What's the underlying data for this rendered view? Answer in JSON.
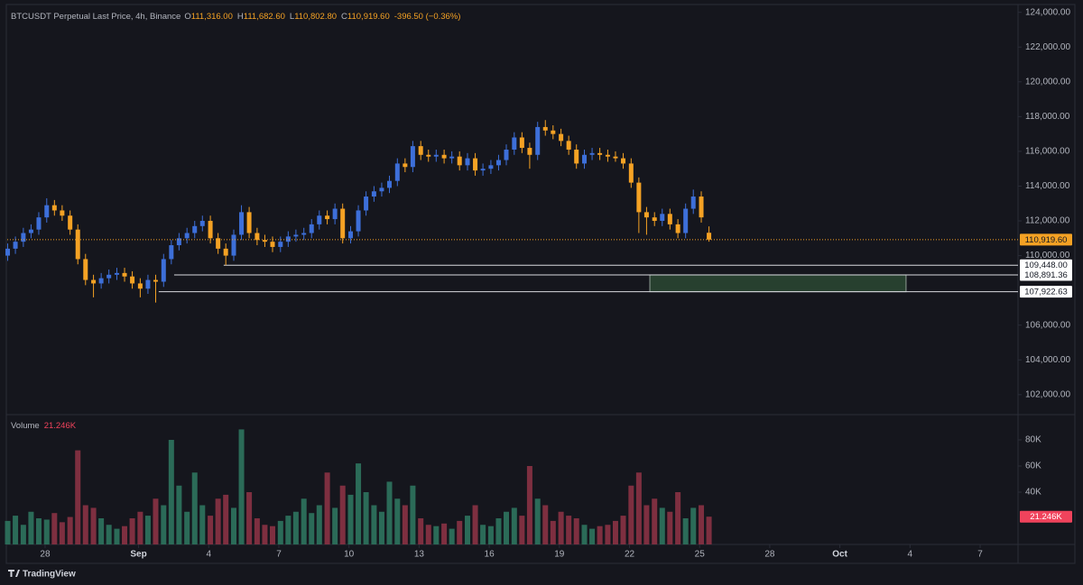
{
  "header": {
    "logo": "TradingView"
  },
  "chart_data": [
    {
      "type": "candlestick",
      "title": "BTCUSDT Perpetual Last Price, 4h, Binance",
      "ohlc_legend": [
        {
          "key": "O",
          "value": "111,316.00"
        },
        {
          "key": "H",
          "value": "111,682.60"
        },
        {
          "key": "L",
          "value": "110,802.80"
        },
        {
          "key": "C",
          "value": "110,919.60"
        }
      ],
      "change": "-396.50 (−0.36%)",
      "x": [
        -1.6,
        -1.27,
        -0.93,
        -0.6,
        -0.27,
        0.07,
        0.4,
        0.73,
        1.07,
        1.4,
        1.73,
        2.07,
        2.4,
        2.73,
        3.07,
        3.4,
        3.73,
        4.07,
        4.4,
        4.73,
        5.07,
        5.4,
        5.73,
        6.07,
        6.4,
        6.73,
        7.07,
        7.4,
        7.73,
        8.07,
        8.4,
        8.73,
        9.07,
        9.4,
        9.73,
        10.07,
        10.4,
        10.73,
        11.07,
        11.4,
        11.73,
        12.07,
        12.4,
        12.73,
        13.07,
        13.4,
        13.73,
        14.07,
        14.4,
        14.73,
        15.07,
        15.4,
        15.73,
        16.07,
        16.4,
        16.73,
        17.07,
        17.4,
        17.73,
        18.07,
        18.4,
        18.73,
        19.07,
        19.4,
        19.73,
        20.07,
        20.4,
        20.73,
        21.07,
        21.4,
        21.73,
        22.07,
        22.4,
        22.73,
        23.07,
        23.4,
        23.73,
        24.07,
        24.4,
        24.73,
        25.07,
        25.4,
        25.73,
        26.07,
        26.4,
        26.73,
        27.07,
        27.4,
        27.73,
        28.07,
        28.4
      ],
      "open": [
        110000,
        110400,
        110800,
        111300,
        111500,
        112200,
        112900,
        112600,
        112300,
        111500,
        109800,
        108600,
        108400,
        108700,
        108900,
        109000,
        108800,
        108400,
        108100,
        108600,
        108500,
        109800,
        110600,
        111000,
        111300,
        111700,
        112000,
        111000,
        110400,
        110000,
        111200,
        112500,
        111300,
        110900,
        110800,
        110500,
        110800,
        111100,
        111200,
        111300,
        111800,
        112300,
        112100,
        112700,
        111000,
        111400,
        112600,
        113400,
        113700,
        113900,
        114300,
        115300,
        115100,
        116300,
        115800,
        115700,
        115800,
        115600,
        115700,
        115200,
        115600,
        114900,
        115000,
        115200,
        115500,
        116100,
        116800,
        116200,
        115800,
        117400,
        117200,
        117000,
        116600,
        116100,
        115300,
        115800,
        115900,
        115800,
        115700,
        115600,
        115300,
        114200,
        112500,
        112200,
        112000,
        112400,
        111800,
        111300,
        112700,
        113400,
        111316
      ],
      "high": [
        110700,
        111100,
        111600,
        111800,
        112500,
        113300,
        113200,
        112900,
        112600,
        111800,
        110100,
        108900,
        109000,
        109200,
        109300,
        109300,
        109100,
        108700,
        108900,
        108900,
        110100,
        110900,
        111300,
        111600,
        112000,
        112300,
        112300,
        111300,
        110700,
        111500,
        112900,
        112800,
        111600,
        111200,
        111100,
        111100,
        111400,
        111500,
        111600,
        112100,
        112600,
        112600,
        113000,
        113000,
        111700,
        112900,
        113700,
        114000,
        114200,
        114600,
        115600,
        115600,
        116600,
        116600,
        116100,
        116100,
        116100,
        116000,
        116000,
        115900,
        115900,
        115300,
        115500,
        115800,
        116400,
        117100,
        117100,
        116500,
        117700,
        117800,
        117500,
        117300,
        116900,
        116400,
        116100,
        116200,
        116200,
        116100,
        116000,
        115900,
        115600,
        114500,
        112800,
        112500,
        112700,
        112700,
        112100,
        113000,
        113800,
        113700,
        111682.6
      ],
      "low": [
        109700,
        110100,
        110500,
        111000,
        111200,
        111900,
        112300,
        112000,
        111200,
        109500,
        108300,
        107600,
        108100,
        108400,
        108600,
        108500,
        108100,
        107600,
        107800,
        107300,
        108200,
        109500,
        110300,
        110700,
        111000,
        111400,
        110700,
        110100,
        109448,
        109700,
        110900,
        111000,
        110600,
        110500,
        110200,
        110200,
        110500,
        110800,
        110900,
        111000,
        111500,
        111800,
        111800,
        110700,
        110700,
        111100,
        112300,
        113100,
        113400,
        113600,
        114000,
        114800,
        114800,
        115500,
        115400,
        115400,
        115300,
        115300,
        114900,
        114900,
        114600,
        114600,
        114700,
        114900,
        115200,
        115800,
        115900,
        115000,
        115500,
        116900,
        116700,
        116300,
        115800,
        115000,
        115000,
        115500,
        115500,
        115400,
        115400,
        115000,
        113900,
        111300,
        111200,
        111700,
        111700,
        111500,
        111000,
        111000,
        112400,
        111900,
        110802.8
      ],
      "close": [
        110400,
        110800,
        111300,
        111500,
        112200,
        112900,
        112600,
        112300,
        111500,
        109800,
        108600,
        108400,
        108700,
        108900,
        109000,
        108800,
        108400,
        108100,
        108600,
        108500,
        109800,
        110600,
        111000,
        111300,
        111700,
        112000,
        111000,
        110400,
        110000,
        111200,
        112500,
        111300,
        110900,
        110800,
        110500,
        110800,
        111100,
        111200,
        111300,
        111800,
        112300,
        112100,
        112700,
        111000,
        111400,
        112600,
        113400,
        113700,
        113900,
        114300,
        115300,
        115100,
        116300,
        115800,
        115700,
        115800,
        115600,
        115700,
        115200,
        115600,
        114900,
        115000,
        115200,
        115500,
        116100,
        116800,
        116200,
        115800,
        117400,
        117200,
        117000,
        116600,
        116100,
        115300,
        115800,
        115900,
        115800,
        115700,
        115600,
        115300,
        114200,
        112500,
        112200,
        112000,
        112400,
        111800,
        111300,
        112700,
        113400,
        112200,
        110919.6
      ],
      "up_color": "#3d6fd9",
      "down_color": "#f5a224",
      "last_price_label": "110,919.60",
      "xlim": [
        -1.62,
        41.62
      ],
      "xticks": [
        {
          "value": 0,
          "label": "28"
        },
        {
          "value": 4,
          "label": "Sep"
        },
        {
          "value": 7,
          "label": "4"
        },
        {
          "value": 10,
          "label": "7"
        },
        {
          "value": 13,
          "label": "10"
        },
        {
          "value": 16,
          "label": "13"
        },
        {
          "value": 19,
          "label": "16"
        },
        {
          "value": 22,
          "label": "19"
        },
        {
          "value": 25,
          "label": "22"
        },
        {
          "value": 28,
          "label": "25"
        },
        {
          "value": 31,
          "label": "28"
        },
        {
          "value": 34,
          "label": "Oct"
        },
        {
          "value": 37,
          "label": "4"
        },
        {
          "value": 40,
          "label": "7"
        }
      ],
      "ylim": [
        100850,
        124450
      ],
      "yticks": [
        {
          "value": 102000,
          "label": "102,000.00"
        },
        {
          "value": 104000,
          "label": "104,000.00"
        },
        {
          "value": 106000,
          "label": "106,000.00"
        },
        {
          "value": 110000,
          "label": "110,000.00"
        },
        {
          "value": 112000,
          "label": "112,000.00"
        },
        {
          "value": 114000,
          "label": "114,000.00"
        },
        {
          "value": 116000,
          "label": "116,000.00"
        },
        {
          "value": 118000,
          "label": "118,000.00"
        },
        {
          "value": 120000,
          "label": "120,000.00"
        },
        {
          "value": 122000,
          "label": "122,000.00"
        },
        {
          "value": 124000,
          "label": "124,000.00"
        }
      ],
      "levels": [
        {
          "value": 109448,
          "label": "109,448.00",
          "x_start": 7.64
        },
        {
          "value": 108891.36,
          "label": "108,891.36",
          "x_start": 5.52
        },
        {
          "value": 107922.63,
          "label": "107,922.63",
          "x_start": 4.86
        }
      ],
      "zone": {
        "x": [
          25.87,
          36.83
        ],
        "y": [
          107922.63,
          108891.36
        ]
      }
    },
    {
      "type": "bar",
      "title": "Volume",
      "last_value_label": "21.246K",
      "values": [
        18000,
        22000,
        15000,
        25000,
        20000,
        19000,
        24000,
        17000,
        21000,
        72000,
        30000,
        28000,
        20000,
        15000,
        12000,
        14000,
        20000,
        25000,
        22000,
        35000,
        30000,
        80000,
        45000,
        25000,
        55000,
        30000,
        22000,
        35000,
        38000,
        28000,
        88000,
        40000,
        20000,
        15000,
        14000,
        18000,
        22000,
        25000,
        35000,
        24000,
        30000,
        55000,
        28000,
        45000,
        38000,
        62000,
        40000,
        30000,
        25000,
        48000,
        35000,
        30000,
        45000,
        20000,
        15000,
        14000,
        16000,
        12000,
        18000,
        22000,
        30000,
        15000,
        14000,
        20000,
        25000,
        28000,
        22000,
        60000,
        35000,
        30000,
        18000,
        25000,
        22000,
        20000,
        15000,
        12000,
        14000,
        15000,
        18000,
        22000,
        45000,
        55000,
        30000,
        35000,
        28000,
        25000,
        40000,
        20000,
        28000,
        30000,
        21246
      ],
      "up_color": "#2b6b58",
      "down_color": "#7e2f40",
      "label_color": "#f0435c",
      "ylim": [
        0,
        100000
      ],
      "yticks": [
        {
          "value": 40000,
          "label": "40K"
        },
        {
          "value": 60000,
          "label": "60K"
        },
        {
          "value": 80000,
          "label": "80K"
        }
      ]
    }
  ]
}
